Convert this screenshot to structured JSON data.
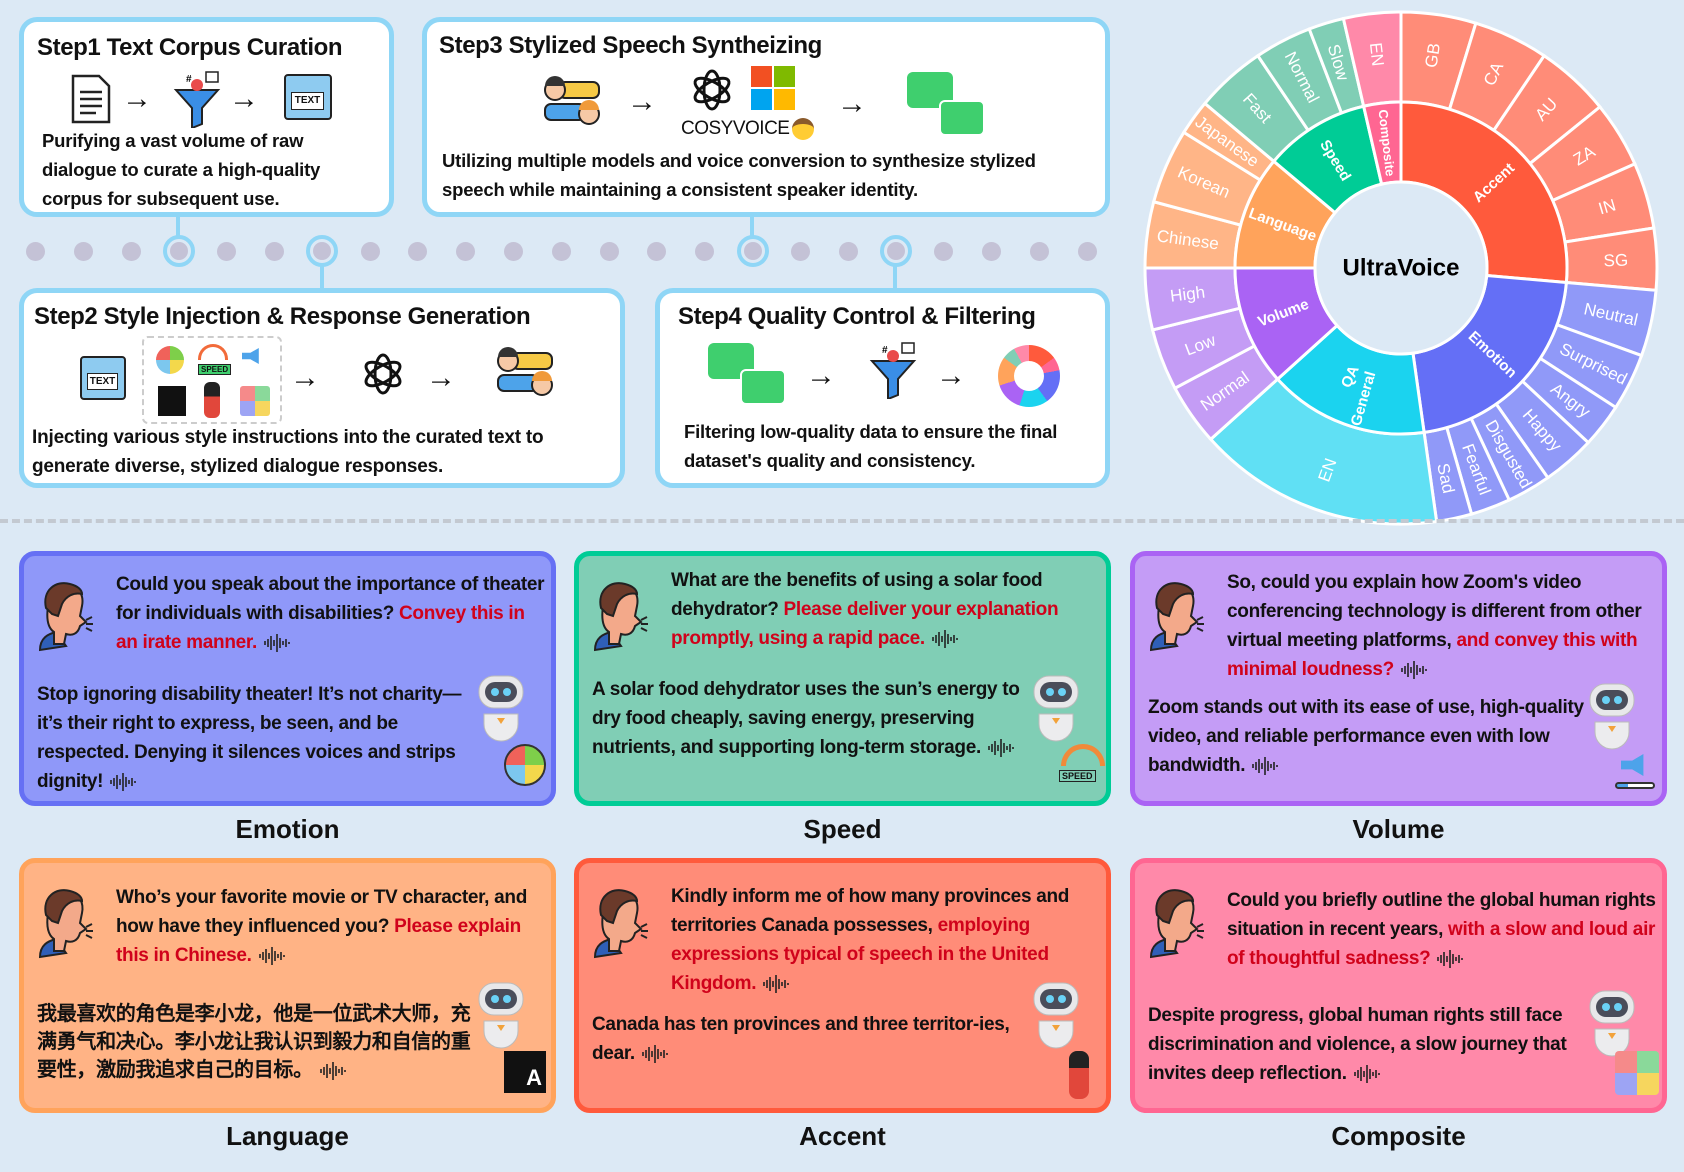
{
  "steps": {
    "step1": {
      "title": "Step1 Text Corpus Curation",
      "desc": "Purifying a vast volume of raw dialogue to curate a high-quality corpus for subsequent use.",
      "folder_label": "TEXT"
    },
    "step2": {
      "title": "Step2 Style Injection & Response Generation",
      "desc": "Injecting various style instructions into the curated text to generate diverse, stylized dialogue responses.",
      "folder_label": "TEXT",
      "speed_label": "SPEED"
    },
    "step3": {
      "title": "Step3 Stylized Speech Syntheizing",
      "desc": "Utilizing multiple models and voice conversion to synthesize stylized speech while maintaining a consistent speaker identity.",
      "cosyvoice_label": "COSYVOICE"
    },
    "step4": {
      "title": "Step4 Quality Control & Filtering",
      "desc": "Filtering low-quality data to ensure the final dataset's quality and consistency."
    }
  },
  "sunburst": {
    "center": "UltraVoice",
    "categories": [
      {
        "name": "Accent",
        "color": "#ff5a3c",
        "child_color": "#ff8c78",
        "children": [
          [
            "GB",
            17
          ],
          [
            "CA",
            17
          ],
          [
            "AU",
            17
          ],
          [
            "ZA",
            15
          ],
          [
            "IN",
            15
          ],
          [
            "SG",
            14
          ]
        ]
      },
      {
        "name": "Emotion",
        "color": "#646ff6",
        "child_color": "#9099f8",
        "children": [
          [
            "Neutral",
            15
          ],
          [
            "Surprised",
            13
          ],
          [
            "Angry",
            10
          ],
          [
            "Happy",
            12
          ],
          [
            "Disgusted",
            10
          ],
          [
            "Fearful",
            9
          ],
          [
            "Sad",
            8
          ]
        ]
      },
      {
        "name": "General QA",
        "color": "#1bd3ef",
        "child_color": "#60e0f4",
        "children": [
          [
            "EN",
            56
          ]
        ]
      },
      {
        "name": "Volume",
        "color": "#aa63f4",
        "child_color": "#c49cf5",
        "children": [
          [
            "Normal",
            14
          ],
          [
            "Low",
            14
          ],
          [
            "High",
            14
          ]
        ]
      },
      {
        "name": "Language",
        "color": "#ffa35b",
        "child_color": "#ffb587",
        "children": [
          [
            "Chinese",
            15
          ],
          [
            "Korean",
            17
          ],
          [
            "Japanese",
            8
          ]
        ]
      },
      {
        "name": "Speed",
        "color": "#00cc96",
        "child_color": "#80ceb5",
        "children": [
          [
            "Fast",
            16
          ],
          [
            "Normal",
            13
          ],
          [
            "Slow",
            8
          ]
        ]
      },
      {
        "name": "Composite",
        "color": "#ff6692",
        "child_color": "#ff89a9",
        "children": [
          [
            "EN",
            13
          ]
        ]
      }
    ]
  },
  "examples": [
    {
      "label": "Emotion",
      "bg": "#8f98f9",
      "border": "#6670f4",
      "corner_icon": "emotion-faces-icon",
      "question": "Could you speak about the importance of theater for individuals with disabilities?",
      "instruction": "Convey this in an irate manner.",
      "answer": "Stop ignoring disability theater! It’s not charity—it’s their right to express, be seen, and be respected. Denying it silences voices and strips dignity!"
    },
    {
      "label": "Speed",
      "bg": "#80ceb5",
      "border": "#00cc96",
      "corner_icon": "speedometer-icon",
      "corner_text": "SPEED",
      "question": "What are the benefits of using a solar food dehydrator?",
      "instruction": "Please deliver your explanation promptly, using a rapid pace.",
      "answer": "A solar food dehydrator uses the sun’s energy to dry food cheaply, saving energy, preserving nutrients, and supporting long-term storage."
    },
    {
      "label": "Volume",
      "bg": "#c49cf6",
      "border": "#aa63f4",
      "corner_icon": "speaker-volume-icon",
      "question": "So, could you explain how Zoom's video conferencing technology is different from other virtual meeting platforms,",
      "instruction": "and convey this with minimal loudness?",
      "answer": "Zoom stands out with its ease of use, high-quality video, and reliable performance even with low bandwidth."
    },
    {
      "label": "Language",
      "bg": "#ffb385",
      "border": "#ffa35b",
      "corner_icon": "translate-icon",
      "question": "Who’s your favorite movie or TV character, and how have they influenced you?",
      "instruction": "Please explain this in Chinese.",
      "answer": "我最喜欢的角色是李小龙，他是一位武术大师，充满勇气和决心。李小龙让我认识到毅力和自信的重要性，激励我追求自己的目标。"
    },
    {
      "label": "Accent",
      "bg": "#ff8c78",
      "border": "#ff5a3c",
      "corner_icon": "royal-guard-icon",
      "question": "Kindly inform me of how many provinces and territories Canada possesses,",
      "instruction": "employing expressions typical of speech in the United Kingdom.",
      "answer": "Canada has ten provinces and three territor-ies, dear."
    },
    {
      "label": "Composite",
      "bg": "#ff89a9",
      "border": "#ff6692",
      "corner_icon": "puzzle-icon",
      "question": "Could you briefly outline the global human rights situation in recent years,",
      "instruction": "with a slow and loud air of thoughtful sadness?",
      "answer": "Despite progress, global human rights still face discrimination and violence, a slow journey that invites deep reflection."
    }
  ]
}
